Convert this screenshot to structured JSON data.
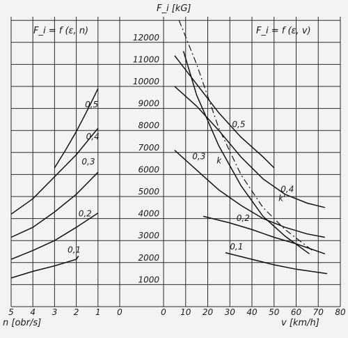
{
  "chart_data": {
    "type": "line",
    "y_axis_label": "F_i [kG]",
    "y_ticks": [
      1000,
      2000,
      3000,
      4000,
      5000,
      6000,
      7000,
      8000,
      9000,
      10000,
      11000,
      12000
    ],
    "ylim": [
      0,
      13000
    ],
    "grid": true,
    "left_panel": {
      "title": "F_i = f (ε, n)",
      "xlabel": "n [obr/s]",
      "x_ticks": [
        "5",
        "4",
        "3",
        "2",
        "1",
        "0"
      ],
      "xlim": [
        5,
        0
      ],
      "series": [
        {
          "name": "0,1",
          "x": [
            5.0,
            4.0,
            3.0,
            2.0,
            1.9
          ],
          "y": [
            1300,
            1600,
            1850,
            2150,
            2300
          ]
        },
        {
          "name": "0,2",
          "x": [
            5.0,
            4.0,
            3.0,
            2.0,
            1.0
          ],
          "y": [
            2150,
            2550,
            3000,
            3600,
            4250
          ]
        },
        {
          "name": "0,3",
          "x": [
            5.0,
            4.0,
            3.0,
            2.0,
            1.0
          ],
          "y": [
            3150,
            3600,
            4300,
            5100,
            6100
          ]
        },
        {
          "name": "0,4",
          "x": [
            5.0,
            4.0,
            3.0,
            2.0,
            1.0
          ],
          "y": [
            4200,
            4900,
            5900,
            6900,
            8100
          ]
        },
        {
          "name": "0,5",
          "x": [
            3.0,
            2.5,
            2.0,
            1.5,
            1.0
          ],
          "y": [
            6300,
            7100,
            7950,
            8900,
            9900
          ]
        }
      ],
      "series_labels": [
        "0,1",
        "0,2",
        "0,3",
        "0,4",
        "0,5"
      ]
    },
    "right_panel": {
      "title": "F_i = f (ε, v)",
      "xlabel": "v [km/h]",
      "x_ticks": [
        "0",
        "10",
        "20",
        "30",
        "40",
        "50",
        "60",
        "70",
        "80"
      ],
      "xlim": [
        0,
        80
      ],
      "series": [
        {
          "name": "0,1",
          "x": [
            28,
            40,
            50,
            60,
            74
          ],
          "y": [
            2450,
            2150,
            1900,
            1700,
            1500
          ]
        },
        {
          "name": "0,2",
          "x": [
            18,
            30,
            40,
            50,
            60,
            73
          ],
          "y": [
            4100,
            3800,
            3500,
            3150,
            2850,
            2400
          ]
        },
        {
          "name": "0,3",
          "x": [
            5,
            15,
            25,
            35,
            45,
            55,
            65,
            73
          ],
          "y": [
            7100,
            6200,
            5300,
            4600,
            4000,
            3600,
            3300,
            3150
          ]
        },
        {
          "name": "0,4",
          "x": [
            5,
            15,
            25,
            35,
            45,
            55,
            65,
            73
          ],
          "y": [
            10000,
            9100,
            8000,
            6800,
            5800,
            5100,
            4700,
            4500
          ]
        },
        {
          "name": "0,5",
          "x": [
            5,
            15,
            25,
            35,
            45,
            50
          ],
          "y": [
            11400,
            10100,
            8800,
            7700,
            6800,
            6300
          ]
        },
        {
          "name": "k",
          "x": [
            9,
            15,
            25,
            35,
            45,
            55,
            66
          ],
          "y": [
            11600,
            9600,
            7300,
            5500,
            4100,
            3200,
            2400
          ]
        },
        {
          "name": "k'",
          "x": [
            7,
            15,
            25,
            35,
            45,
            55,
            68
          ],
          "y": [
            13000,
            11000,
            8100,
            6000,
            4500,
            3500,
            2500
          ]
        }
      ],
      "series_labels": [
        "0,1",
        "0,2",
        "0,3",
        "0,4",
        "0,5",
        "k",
        "k'"
      ]
    }
  }
}
